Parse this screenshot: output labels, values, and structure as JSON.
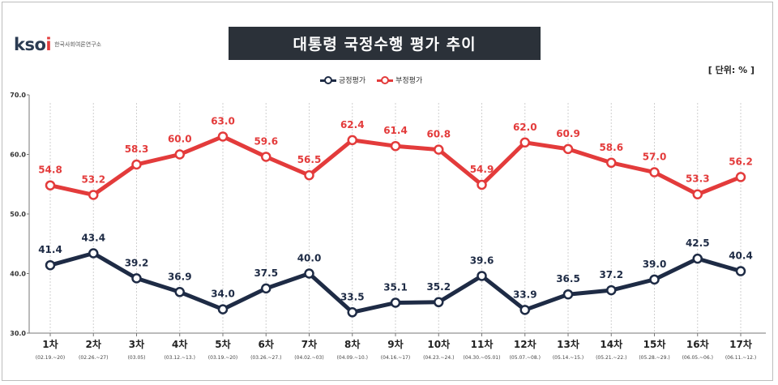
{
  "logo": {
    "mark_pre": "k",
    "mark_mid": "so",
    "mark_accent": "i",
    "subtitle": "한국사회여론연구소"
  },
  "title": "대통령 국정수행 평가 추이",
  "unit": "[ 단위: % ]",
  "chart_data": {
    "type": "line",
    "title": "대통령 국정수행 평가 추이",
    "categories": [
      "1차",
      "2차",
      "3차",
      "4차",
      "5차",
      "6차",
      "7차",
      "8차",
      "9차",
      "10차",
      "11차",
      "12차",
      "13차",
      "14차",
      "15차",
      "16차",
      "17차"
    ],
    "dates": [
      "(02.19.~20)",
      "(02.26.~27)",
      "(03.05)",
      "(03.12.~13.)",
      "(03.19.~20)",
      "(03.26.~27.)",
      "(04.02.~03)",
      "(04.09.~10.)",
      "(04.16.~17)",
      "(04.23.~24.)",
      "(04.30.~05.01)",
      "(05.07.~08.)",
      "(05.14.~15.)",
      "(05.21.~22.)",
      "(05.28.~29.)",
      "(06.05.~06.)",
      "(06.11.~12.)"
    ],
    "series": [
      {
        "name": "긍정평가",
        "color": "#1e2b45",
        "values": [
          41.4,
          43.4,
          39.2,
          36.9,
          34.0,
          37.5,
          40.0,
          33.5,
          35.1,
          35.2,
          39.6,
          33.9,
          36.5,
          37.2,
          39.0,
          42.5,
          40.4
        ]
      },
      {
        "name": "부정평가",
        "color": "#e33b3b",
        "values": [
          54.8,
          53.2,
          58.3,
          60.0,
          63.0,
          59.6,
          56.5,
          62.4,
          61.4,
          60.8,
          54.9,
          62.0,
          60.9,
          58.6,
          57.0,
          53.3,
          56.2
        ]
      }
    ],
    "ylim": [
      30.0,
      70.0
    ],
    "yticks": [
      "30.0",
      "40.0",
      "50.0",
      "60.0",
      "70.0"
    ],
    "xlabel": "",
    "ylabel": "",
    "legend_position": "top-center"
  }
}
